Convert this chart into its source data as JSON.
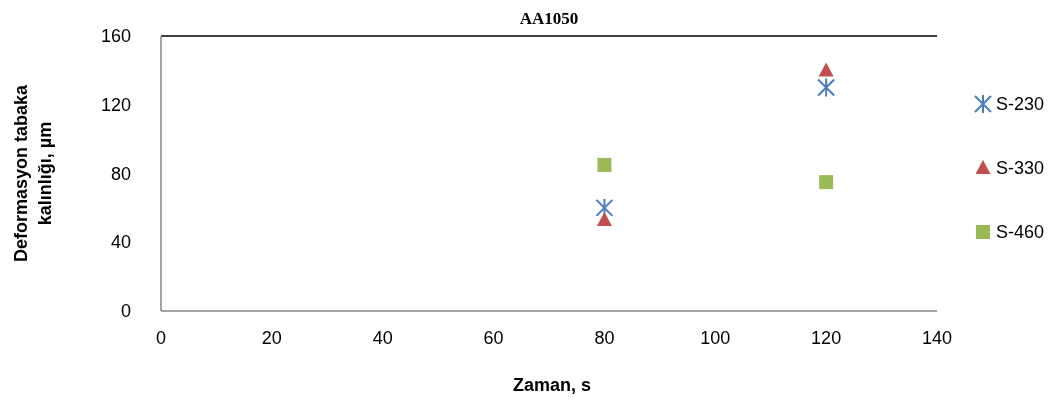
{
  "chart_data": {
    "type": "scatter",
    "title": "AA1050",
    "xlabel": "Zaman, s",
    "ylabel": "Deformasyon tabaka kalınlığı, µm",
    "xlim": [
      0,
      140
    ],
    "xticks": [
      0,
      20,
      40,
      60,
      80,
      100,
      120,
      140
    ],
    "ylim": [
      0,
      160
    ],
    "yticks": [
      0,
      40,
      80,
      120,
      160
    ],
    "grid": false,
    "legend": "right",
    "x": [
      80,
      120
    ],
    "series": [
      {
        "name": "S-230",
        "color": "#4a7ebb",
        "marker": "cross",
        "values": [
          60,
          130
        ]
      },
      {
        "name": "S-330",
        "color": "#c0504d",
        "marker": "triangle",
        "values": [
          53,
          140
        ]
      },
      {
        "name": "S-460",
        "color": "#9bbb59",
        "marker": "square",
        "values": [
          85,
          75
        ]
      }
    ]
  }
}
